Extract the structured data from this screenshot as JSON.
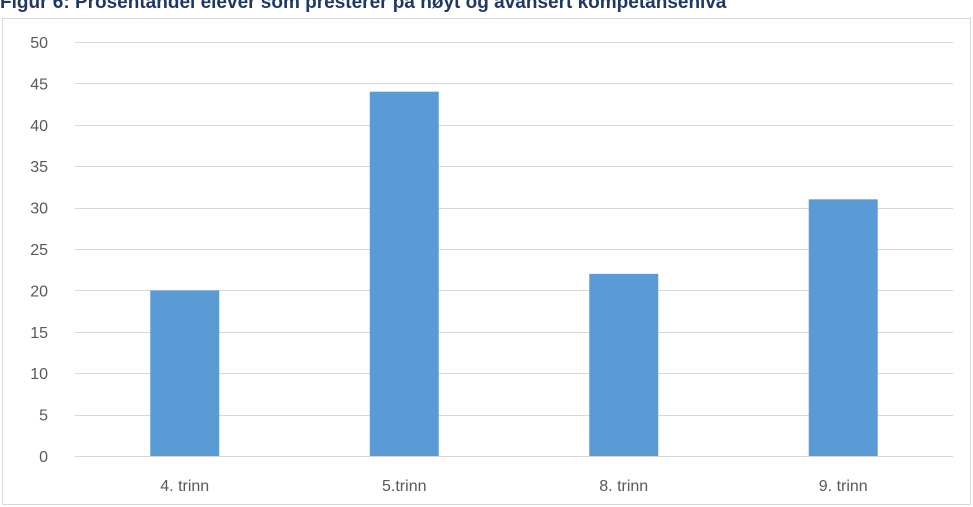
{
  "chart_data": {
    "type": "bar",
    "title": "Figur 6: Prosentandel elever som presterer på høyt og avansert kompetansenivå",
    "categories": [
      "4. trinn",
      "5.trinn",
      "8. trinn",
      "9. trinn"
    ],
    "values": [
      20,
      44,
      22,
      31
    ],
    "xlabel": "",
    "ylabel": "",
    "ylim": [
      0,
      50
    ],
    "yticks": [
      "0",
      "5",
      "10",
      "15",
      "20",
      "25",
      "30",
      "35",
      "40",
      "45",
      "50"
    ],
    "grid": true,
    "legend": "none",
    "bar_color": "#5b9bd5",
    "grid_color": "#d9d9d9",
    "axis_color": "#d9d9d9"
  }
}
